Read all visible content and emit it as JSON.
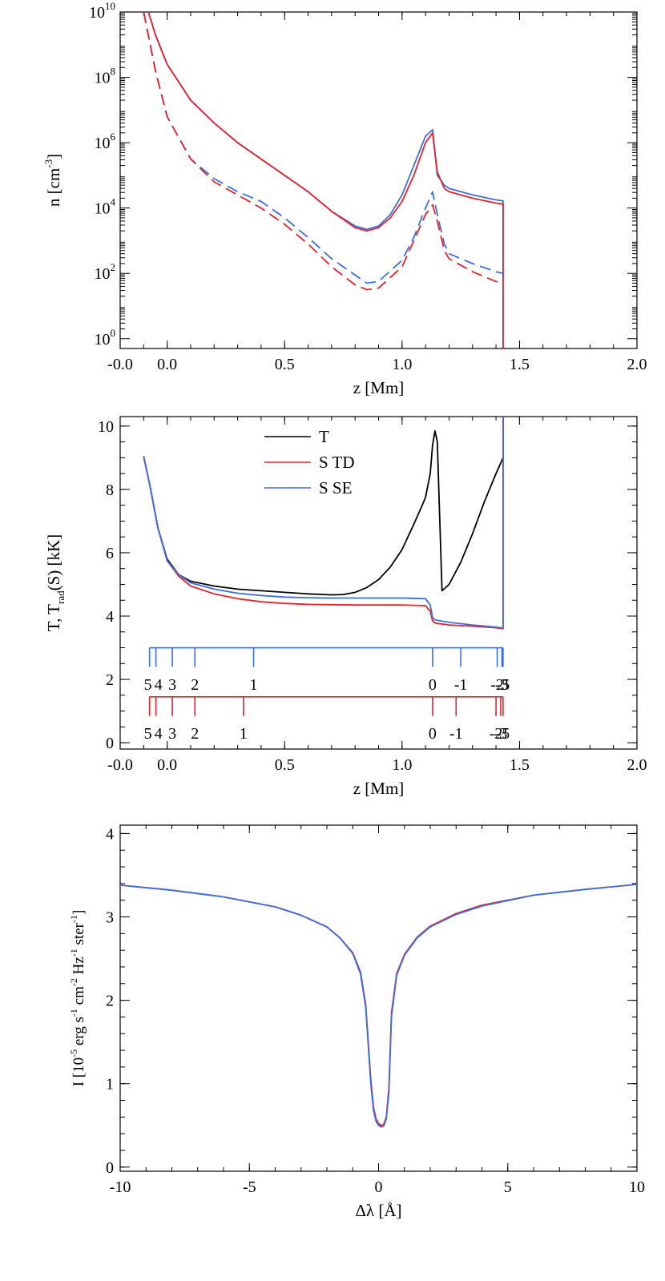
{
  "colors": {
    "axis": "#000000",
    "T": "#000000",
    "TD": "#e8202a",
    "SE": "#3a6fe0"
  },
  "chart_data": [
    {
      "type": "line",
      "ylog": true,
      "xlabel": "z [Mm]",
      "ylabel_main": "n [cm",
      "ylabel_sup": "-3",
      "ylabel_end": "]",
      "xlim": [
        -0.2,
        2.0
      ],
      "ylim_exp": [
        -0.3,
        10
      ],
      "xticks": [
        "-0.0",
        "0.0",
        "0.5",
        "1.0",
        "1.5",
        "2.0"
      ],
      "xtick_values": [
        -0.2,
        0.0,
        0.5,
        1.0,
        1.5,
        2.0
      ],
      "yticks_exp": [
        0,
        2,
        4,
        6,
        8,
        10
      ],
      "ytick_base": "10",
      "ytick_sups": [
        "0",
        "2",
        "4",
        "6",
        "8",
        "10"
      ],
      "series": [
        {
          "name": "n_total_SE",
          "color": "SE",
          "dash": false,
          "x": [
            -0.08,
            -0.05,
            0.0,
            0.1,
            0.2,
            0.3,
            0.4,
            0.5,
            0.6,
            0.7,
            0.8,
            0.85,
            0.9,
            0.95,
            1.0,
            1.05,
            1.1,
            1.13,
            1.15,
            1.18,
            1.2,
            1.3,
            1.4,
            1.43,
            1.43
          ],
          "y": [
            10.0,
            9.3,
            8.4,
            7.3,
            6.6,
            6.0,
            5.5,
            5.0,
            4.5,
            3.9,
            3.45,
            3.35,
            3.45,
            3.8,
            4.4,
            5.3,
            6.2,
            6.4,
            5.0,
            4.7,
            4.6,
            4.4,
            4.25,
            4.22,
            -0.3
          ]
        },
        {
          "name": "n_total_TD",
          "color": "TD",
          "dash": false,
          "x": [
            -0.08,
            -0.05,
            0.0,
            0.1,
            0.2,
            0.3,
            0.4,
            0.5,
            0.6,
            0.7,
            0.8,
            0.85,
            0.9,
            0.95,
            1.0,
            1.05,
            1.1,
            1.13,
            1.15,
            1.18,
            1.2,
            1.3,
            1.4,
            1.43,
            1.43
          ],
          "y": [
            10.0,
            9.3,
            8.4,
            7.3,
            6.6,
            6.0,
            5.5,
            5.0,
            4.5,
            3.9,
            3.4,
            3.3,
            3.4,
            3.7,
            4.2,
            5.0,
            6.0,
            6.3,
            5.1,
            4.6,
            4.5,
            4.3,
            4.15,
            4.12,
            -0.3
          ]
        },
        {
          "name": "n_minor_SE",
          "color": "SE",
          "dash": true,
          "x": [
            -0.1,
            -0.05,
            0.0,
            0.1,
            0.2,
            0.3,
            0.4,
            0.5,
            0.6,
            0.7,
            0.8,
            0.85,
            0.9,
            1.0,
            1.05,
            1.1,
            1.13,
            1.15,
            1.18,
            1.2,
            1.3,
            1.4,
            1.43
          ],
          "y": [
            10.0,
            8.2,
            6.8,
            5.5,
            4.9,
            4.5,
            4.2,
            3.7,
            3.1,
            2.45,
            1.95,
            1.7,
            1.75,
            2.4,
            3.1,
            4.0,
            4.5,
            3.8,
            2.9,
            2.6,
            2.3,
            2.05,
            2.0
          ]
        },
        {
          "name": "n_minor_TD",
          "color": "TD",
          "dash": true,
          "x": [
            -0.1,
            -0.05,
            0.0,
            0.1,
            0.2,
            0.3,
            0.4,
            0.5,
            0.6,
            0.7,
            0.8,
            0.85,
            0.9,
            1.0,
            1.05,
            1.1,
            1.13,
            1.15,
            1.18,
            1.2,
            1.3,
            1.4,
            1.43
          ],
          "y": [
            10.0,
            8.2,
            6.8,
            5.5,
            4.8,
            4.4,
            4.0,
            3.5,
            2.9,
            2.2,
            1.65,
            1.5,
            1.55,
            2.2,
            3.0,
            3.8,
            4.1,
            3.6,
            2.7,
            2.45,
            2.05,
            1.75,
            1.72
          ]
        }
      ]
    },
    {
      "type": "line",
      "xlabel": "z [Mm]",
      "ylabel_main": "T, T",
      "ylabel_sub": "rad",
      "ylabel_end": "(S) [kK]",
      "xlim": [
        -0.2,
        2.0
      ],
      "ylim": [
        -0.2,
        10.3
      ],
      "xticks": [
        "-0.0",
        "0.0",
        "0.5",
        "1.0",
        "1.5",
        "2.0"
      ],
      "xtick_values": [
        -0.2,
        0.0,
        0.5,
        1.0,
        1.5,
        2.0
      ],
      "yticks": [
        "0",
        "2",
        "4",
        "6",
        "8",
        "10"
      ],
      "ytick_values": [
        0,
        2,
        4,
        6,
        8,
        10
      ],
      "legend": [
        {
          "label": "T",
          "color": "T"
        },
        {
          "label": "S TD",
          "color": "TD"
        },
        {
          "label": "S SE",
          "color": "SE"
        }
      ],
      "series": [
        {
          "name": "T",
          "color": "T",
          "x": [
            -0.1,
            -0.07,
            -0.04,
            0.0,
            0.05,
            0.1,
            0.2,
            0.3,
            0.4,
            0.5,
            0.6,
            0.7,
            0.75,
            0.8,
            0.85,
            0.9,
            0.95,
            1.0,
            1.05,
            1.08,
            1.1,
            1.12,
            1.13,
            1.14,
            1.15,
            1.17,
            1.2,
            1.25,
            1.3,
            1.35,
            1.4,
            1.43,
            1.43
          ],
          "y": [
            9.05,
            8.0,
            6.8,
            5.8,
            5.3,
            5.1,
            4.95,
            4.85,
            4.8,
            4.75,
            4.7,
            4.67,
            4.68,
            4.75,
            4.9,
            5.15,
            5.55,
            6.1,
            6.9,
            7.4,
            7.75,
            8.5,
            9.4,
            9.85,
            9.5,
            4.8,
            5.0,
            5.7,
            6.6,
            7.6,
            8.5,
            9.0,
            10.3
          ]
        },
        {
          "name": "S TD",
          "color": "TD",
          "x": [
            -0.1,
            -0.07,
            -0.04,
            0.0,
            0.05,
            0.1,
            0.2,
            0.3,
            0.4,
            0.5,
            0.6,
            0.7,
            0.8,
            0.9,
            1.0,
            1.1,
            1.12,
            1.13,
            1.14,
            1.2,
            1.3,
            1.4,
            1.43,
            1.43
          ],
          "y": [
            9.05,
            8.0,
            6.8,
            5.75,
            5.25,
            4.95,
            4.7,
            4.55,
            4.45,
            4.4,
            4.37,
            4.36,
            4.35,
            4.35,
            4.35,
            4.33,
            4.15,
            3.85,
            3.78,
            3.72,
            3.68,
            3.63,
            3.6,
            10.3
          ]
        },
        {
          "name": "S SE",
          "color": "SE",
          "x": [
            -0.1,
            -0.07,
            -0.04,
            0.0,
            0.05,
            0.1,
            0.2,
            0.3,
            0.4,
            0.5,
            0.6,
            0.7,
            0.8,
            0.9,
            1.0,
            1.1,
            1.12,
            1.13,
            1.14,
            1.2,
            1.3,
            1.4,
            1.43,
            1.43
          ],
          "y": [
            9.05,
            8.0,
            6.8,
            5.75,
            5.3,
            5.05,
            4.85,
            4.72,
            4.65,
            4.6,
            4.58,
            4.57,
            4.57,
            4.57,
            4.57,
            4.55,
            4.35,
            3.95,
            3.88,
            3.8,
            3.72,
            3.65,
            3.62,
            10.3
          ]
        }
      ],
      "tau_scales": [
        {
          "color": "SE",
          "baseline": 3.0,
          "label_y": 1.85,
          "ticks": [
            -0.075,
            -0.048,
            0.022,
            0.118,
            0.368,
            1.13,
            1.25,
            1.405,
            1.425,
            1.43
          ],
          "labels": [
            "5",
            "4",
            "3",
            "2",
            "1",
            "0",
            "-1",
            "-2",
            "-3",
            "-5"
          ]
        },
        {
          "color": "TD",
          "baseline": 1.45,
          "label_y": 0.3,
          "ticks": [
            -0.075,
            -0.048,
            0.022,
            0.118,
            0.325,
            1.13,
            1.23,
            1.4,
            1.42,
            1.43
          ],
          "labels": [
            "5",
            "4",
            "3",
            "2",
            "1",
            "0",
            "-1",
            "-2",
            "-3",
            "-5"
          ]
        }
      ]
    },
    {
      "type": "line",
      "xlabel": "Δλ [Å]",
      "ylabel_main": "I [10",
      "ylabel_parts": [
        {
          "t": "I [10",
          "sup": false
        },
        {
          "t": "-5",
          "sup": true
        },
        {
          "t": " erg s",
          "sup": false
        },
        {
          "t": "-1",
          "sup": true
        },
        {
          "t": " cm",
          "sup": false
        },
        {
          "t": "-2",
          "sup": true
        },
        {
          "t": " Hz",
          "sup": false
        },
        {
          "t": "-1",
          "sup": true
        },
        {
          "t": " ster",
          "sup": false
        },
        {
          "t": "-1",
          "sup": true
        },
        {
          "t": "]",
          "sup": false
        }
      ],
      "xlim": [
        -10,
        10
      ],
      "ylim": [
        -0.05,
        4.1
      ],
      "xticks": [
        "-10",
        "-5",
        "0",
        "5",
        "10"
      ],
      "xtick_values": [
        -10,
        -5,
        0,
        5,
        10
      ],
      "yticks": [
        "0",
        "1",
        "2",
        "3",
        "4"
      ],
      "ytick_values": [
        0,
        1,
        2,
        3,
        4
      ],
      "series": [
        {
          "name": "I TD",
          "color": "TD",
          "x": [
            -10,
            -8,
            -6,
            -4,
            -3,
            -2,
            -1.5,
            -1,
            -0.7,
            -0.5,
            -0.3,
            -0.2,
            -0.1,
            0.0,
            0.1,
            0.2,
            0.3,
            0.4,
            0.5,
            0.7,
            1.0,
            1.5,
            2,
            3,
            4,
            6,
            8,
            10
          ],
          "y": [
            3.38,
            3.32,
            3.24,
            3.12,
            3.02,
            2.88,
            2.75,
            2.57,
            2.34,
            1.95,
            1.05,
            0.72,
            0.58,
            0.52,
            0.5,
            0.51,
            0.6,
            0.95,
            1.85,
            2.32,
            2.55,
            2.76,
            2.89,
            3.04,
            3.14,
            3.26,
            3.33,
            3.39
          ]
        },
        {
          "name": "I SE",
          "color": "SE",
          "x": [
            -10,
            -8,
            -6,
            -4,
            -3,
            -2,
            -1.5,
            -1,
            -0.7,
            -0.5,
            -0.3,
            -0.2,
            -0.1,
            0.0,
            0.1,
            0.2,
            0.3,
            0.4,
            0.5,
            0.7,
            1.0,
            1.5,
            2,
            3,
            4,
            6,
            8,
            10
          ],
          "y": [
            3.38,
            3.32,
            3.24,
            3.12,
            3.02,
            2.88,
            2.75,
            2.56,
            2.32,
            1.92,
            1.0,
            0.68,
            0.55,
            0.5,
            0.48,
            0.49,
            0.58,
            0.9,
            1.8,
            2.3,
            2.54,
            2.75,
            2.88,
            3.03,
            3.13,
            3.26,
            3.33,
            3.39
          ]
        }
      ]
    }
  ]
}
